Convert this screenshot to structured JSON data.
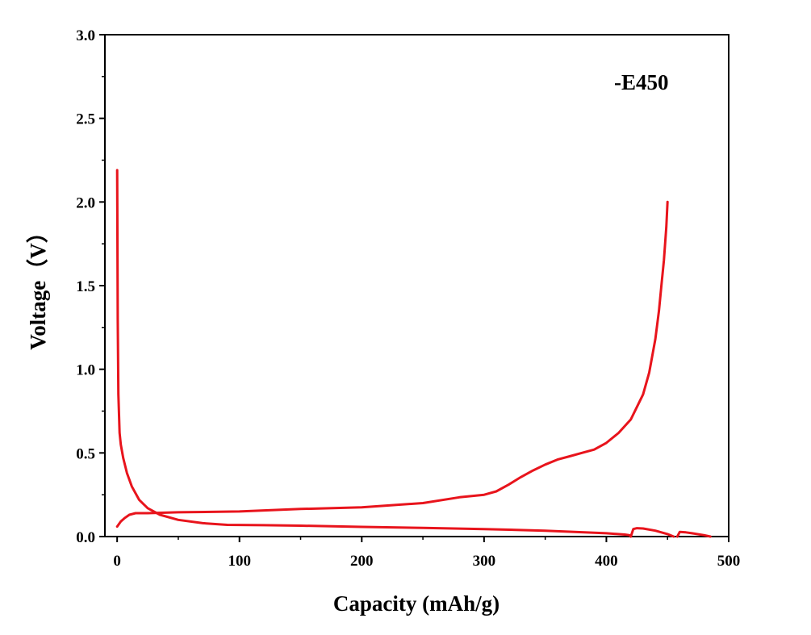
{
  "chart_data": {
    "type": "line",
    "xlabel": "Capacity (mAh/g)",
    "ylabel": "Voltage（V）",
    "xlim": [
      -10,
      500
    ],
    "ylim": [
      0,
      3.0
    ],
    "xticks": [
      0,
      100,
      200,
      300,
      400,
      500
    ],
    "yticks": [
      0.0,
      0.5,
      1.0,
      1.5,
      2.0,
      2.5,
      3.0
    ],
    "xtick_labels": [
      "0",
      "100",
      "200",
      "300",
      "400",
      "500"
    ],
    "ytick_labels": [
      "0.0",
      "0.5",
      "1.0",
      "1.5",
      "2.0",
      "2.5",
      "3.0"
    ],
    "annotation": "-E450",
    "grid": false,
    "color": "#e8141c",
    "series": [
      {
        "x": [
          0,
          0.5,
          1,
          2,
          3,
          5,
          8,
          12,
          18,
          25,
          35,
          50,
          70,
          90,
          120,
          150,
          200,
          250,
          300,
          350,
          400,
          415,
          419,
          420
        ],
        "y": [
          2.19,
          1.3,
          0.85,
          0.62,
          0.55,
          0.47,
          0.38,
          0.3,
          0.22,
          0.17,
          0.13,
          0.1,
          0.08,
          0.07,
          0.068,
          0.065,
          0.058,
          0.052,
          0.045,
          0.035,
          0.02,
          0.012,
          0.008,
          0.0
        ]
      },
      {
        "x": [
          420,
          422,
          425,
          430,
          440,
          450,
          455
        ],
        "y": [
          0.0,
          0.045,
          0.05,
          0.048,
          0.035,
          0.015,
          0.0
        ]
      },
      {
        "x": [
          458,
          460,
          465,
          470,
          480,
          485
        ],
        "y": [
          0.0,
          0.028,
          0.025,
          0.02,
          0.008,
          0.0
        ]
      },
      {
        "x": [
          0,
          3,
          6,
          10,
          15,
          25,
          50,
          100,
          150,
          200,
          250,
          280,
          300,
          310,
          320,
          330,
          340,
          350,
          360,
          370,
          380,
          390,
          400,
          410,
          420,
          430,
          435,
          440,
          443,
          445,
          447,
          449,
          450
        ],
        "y": [
          0.06,
          0.09,
          0.11,
          0.13,
          0.14,
          0.14,
          0.145,
          0.15,
          0.165,
          0.175,
          0.2,
          0.235,
          0.25,
          0.27,
          0.31,
          0.355,
          0.395,
          0.43,
          0.46,
          0.48,
          0.5,
          0.52,
          0.56,
          0.62,
          0.7,
          0.85,
          0.98,
          1.18,
          1.35,
          1.5,
          1.65,
          1.85,
          2.0
        ]
      }
    ]
  }
}
